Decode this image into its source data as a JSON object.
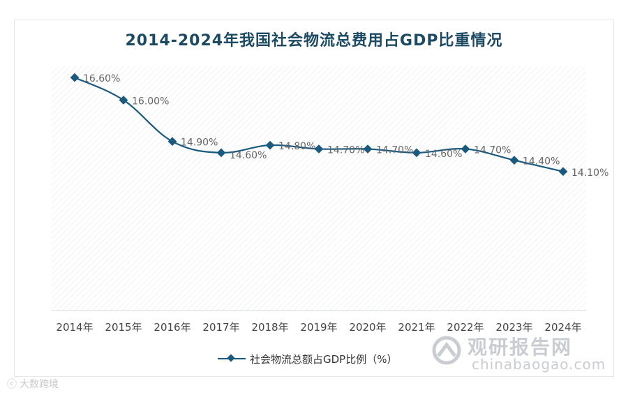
{
  "chart_data": {
    "type": "line",
    "title": "2014-2024年我国社会物流总费用占GDP比重情况",
    "categories": [
      "2014年",
      "2015年",
      "2016年",
      "2017年",
      "2018年",
      "2019年",
      "2020年",
      "2021年",
      "2022年",
      "2023年",
      "2024年"
    ],
    "series": [
      {
        "name": "社会物流总额占GDP比例（%）",
        "values": [
          16.6,
          16.0,
          14.9,
          14.6,
          14.8,
          14.7,
          14.7,
          14.6,
          14.7,
          14.4,
          14.1
        ],
        "labels": [
          "16.60%",
          "16.00%",
          "14.90%",
          "14.60%",
          "14.80%",
          "14.70%",
          "14.70%",
          "14.60%",
          "14.70%",
          "14.40%",
          "14.10%"
        ],
        "color": "#1b5a7e"
      }
    ],
    "ylim": [
      10.4,
      16.9
    ],
    "grid": false,
    "legend": "bottom",
    "xlabel": "",
    "ylabel": ""
  },
  "watermark": {
    "brand": "观研报告网",
    "url": "chinabaogao.com"
  },
  "corner_mark": {
    "text": "大数跨境"
  }
}
